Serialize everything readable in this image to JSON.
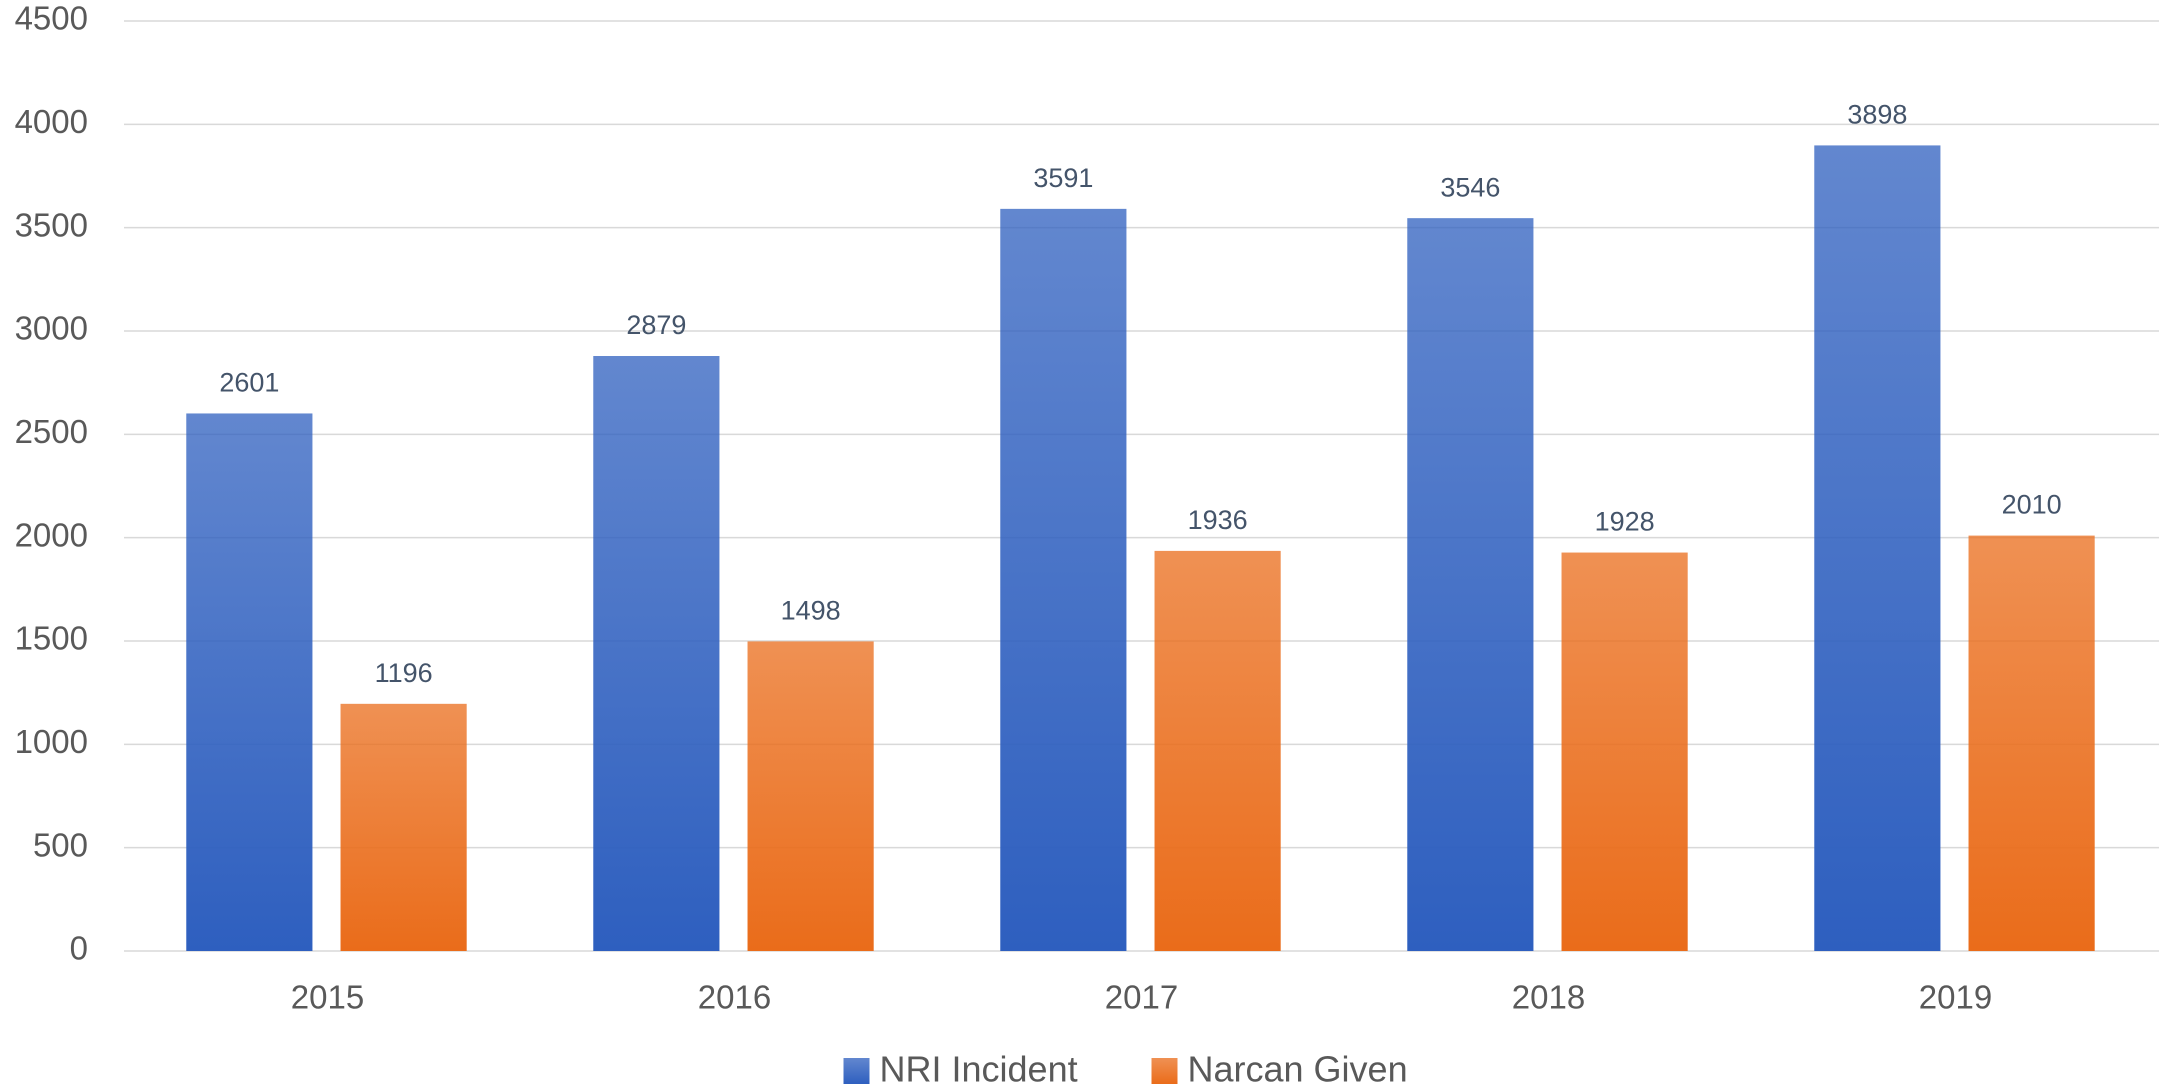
{
  "chart_data": {
    "type": "bar",
    "categories": [
      "2015",
      "2016",
      "2017",
      "2018",
      "2019"
    ],
    "series": [
      {
        "name": "NRI Incident",
        "color": "#2e5fbf",
        "values": [
          2601,
          2879,
          3591,
          3546,
          3898
        ]
      },
      {
        "name": "Narcan Given",
        "color": "#ea6c1a",
        "values": [
          1196,
          1498,
          1936,
          1928,
          2010
        ]
      }
    ],
    "ylim": [
      0,
      4500
    ],
    "yticks": [
      0,
      500,
      1000,
      1500,
      2000,
      2500,
      3000,
      3500,
      4000,
      4500
    ],
    "grid": true,
    "legend": "bottom"
  }
}
